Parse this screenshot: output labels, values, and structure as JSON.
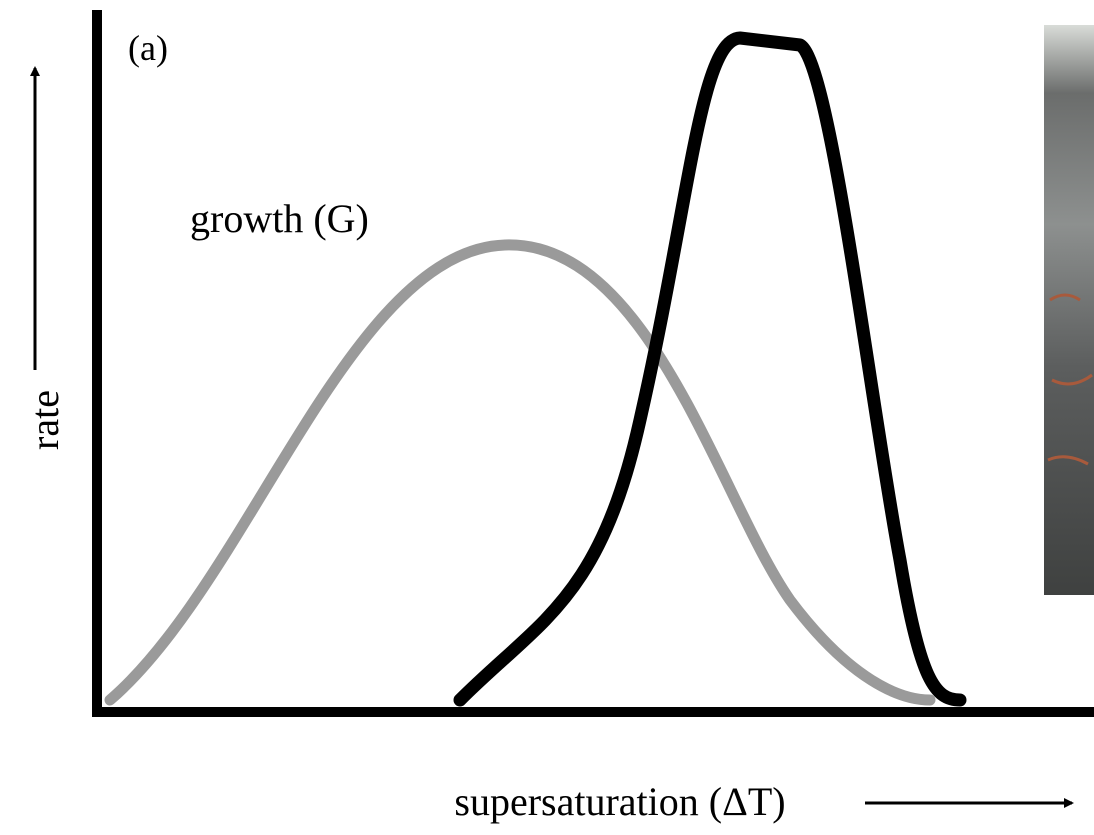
{
  "panel_label": "(a)",
  "curve_label": "growth (G)",
  "axes": {
    "x_label": "supersaturation (ΔT)",
    "y_label": "rate"
  }
}
